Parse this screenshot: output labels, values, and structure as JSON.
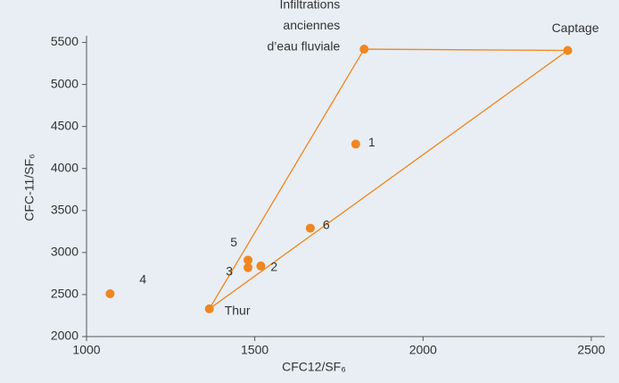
{
  "chart_data": {
    "type": "scatter",
    "x_label": "CFC12/SF₆",
    "y_label": "CFC-11/SF₆",
    "xlim": [
      1000,
      2540
    ],
    "ylim": [
      2000,
      5580
    ],
    "xticks": [
      1000,
      1500,
      2000,
      2500
    ],
    "yticks": [
      2000,
      2500,
      3000,
      3500,
      4000,
      4500,
      5000,
      5500
    ],
    "color": "#f0861f",
    "series": [
      {
        "type": "scatter",
        "labels": [
          "Captage",
          [
            "Infiltrations",
            "anciennes",
            "d’eau fluviale"
          ],
          "1",
          "6",
          "5",
          "3",
          "2",
          "Thur",
          "4"
        ],
        "x": [
          2430,
          1825,
          1800,
          1665,
          1480,
          1480,
          1518,
          1365,
          1070
        ],
        "values": [
          5405,
          5420,
          4290,
          3290,
          2910,
          2820,
          2840,
          2330,
          2510
        ]
      },
      {
        "type": "line",
        "x": [
          1365,
          1825,
          2430,
          1365
        ],
        "values": [
          2330,
          5420,
          5405,
          2330
        ]
      }
    ]
  }
}
